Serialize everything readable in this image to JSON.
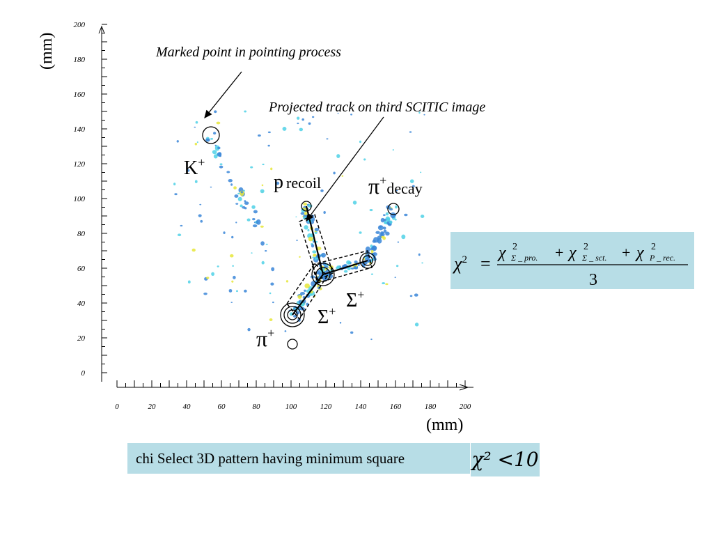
{
  "annotations": {
    "marked_point": "Marked point in pointing process",
    "projected_track": "Projected track on third SCITIC image"
  },
  "axes": {
    "y_unit": "(mm)",
    "x_unit": "(mm)",
    "y_ticks": [
      "200",
      "180",
      "160",
      "140",
      "120",
      "100",
      "80",
      "60",
      "40",
      "20",
      "0"
    ],
    "x_ticks": [
      "0",
      "20",
      "40",
      "60",
      "80",
      "100",
      "120",
      "140",
      "160",
      "180",
      "200"
    ]
  },
  "particles": {
    "kaon": "K",
    "kaon_sup": "+",
    "proton": "p",
    "proton_sub": "recoil",
    "pion_decay": "π",
    "pion_decay_sup": "+",
    "pion_decay_sub": "decay",
    "sigma1": "Σ",
    "sigma1_sup": "+",
    "sigma2": "Σ",
    "sigma2_sup": "+",
    "pion": "π",
    "pion_sup": "+"
  },
  "equation": {
    "lhs": "χ",
    "lhs_sup": "2",
    "num_term1": "χ",
    "num_term1_sup": "2",
    "num_term1_sub": "Σ _ pro.",
    "num_term2": "χ",
    "num_term2_sup": "2",
    "num_term2_sub": "Σ _ sct.",
    "num_term3": "χ",
    "num_term3_sup": "2",
    "num_term3_sub": "P _ rec.",
    "plus": "+",
    "equals": "=",
    "denominator": "3"
  },
  "selection": {
    "text": "chi Select 3D pattern having minimum square",
    "inequality": "χ² <10"
  },
  "colors": {
    "box_fill": "#b7dde6",
    "hit_blue": "#3a86d8",
    "hit_cyan": "#4fd1e6",
    "hit_yellow": "#e6e63a"
  }
}
